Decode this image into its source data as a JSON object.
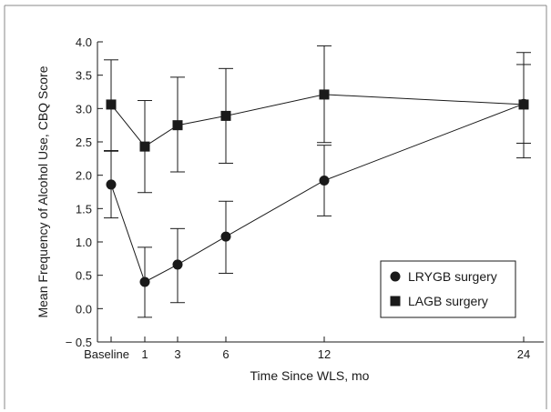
{
  "chart_data": {
    "type": "line",
    "xlabel": "Time Since WLS, mo",
    "ylabel": "Mean Frequency of Alcohol Use, CBQ Score",
    "x_ticks": [
      {
        "label": "Baseline",
        "value": 0
      },
      {
        "label": "1",
        "value": 1
      },
      {
        "label": "3",
        "value": 3
      },
      {
        "label": "6",
        "value": 6
      },
      {
        "label": "12",
        "value": 12
      },
      {
        "label": "24",
        "value": 24
      }
    ],
    "y_ticks": [
      "4.0",
      "3.5",
      "3.0",
      "2.5",
      "2.0",
      "1.5",
      "1.0",
      "0.5",
      "0.0",
      "− 0.5"
    ],
    "ylim": [
      -0.5,
      4.0
    ],
    "legend_position": "bottom-right",
    "series": [
      {
        "name": "LRYGB surgery",
        "marker": "circle",
        "x": [
          0,
          1,
          3,
          6,
          12,
          24
        ],
        "y": [
          1.86,
          0.4,
          0.66,
          1.08,
          1.92,
          3.07
        ],
        "err_low": [
          1.36,
          -0.13,
          0.09,
          0.53,
          1.39,
          2.48
        ],
        "err_high": [
          2.37,
          0.92,
          1.2,
          1.61,
          2.45,
          3.66
        ]
      },
      {
        "name": "LAGB surgery",
        "marker": "square",
        "x": [
          0,
          1,
          3,
          6,
          12,
          24
        ],
        "y": [
          3.06,
          2.43,
          2.75,
          2.89,
          3.21,
          3.06
        ],
        "err_low": [
          2.36,
          1.74,
          2.05,
          2.18,
          2.49,
          2.26
        ],
        "err_high": [
          3.73,
          3.12,
          3.47,
          3.6,
          3.94,
          3.84
        ]
      }
    ],
    "colors": {
      "ink": "#1a1a1a",
      "frame": "#8a8a8a"
    }
  }
}
